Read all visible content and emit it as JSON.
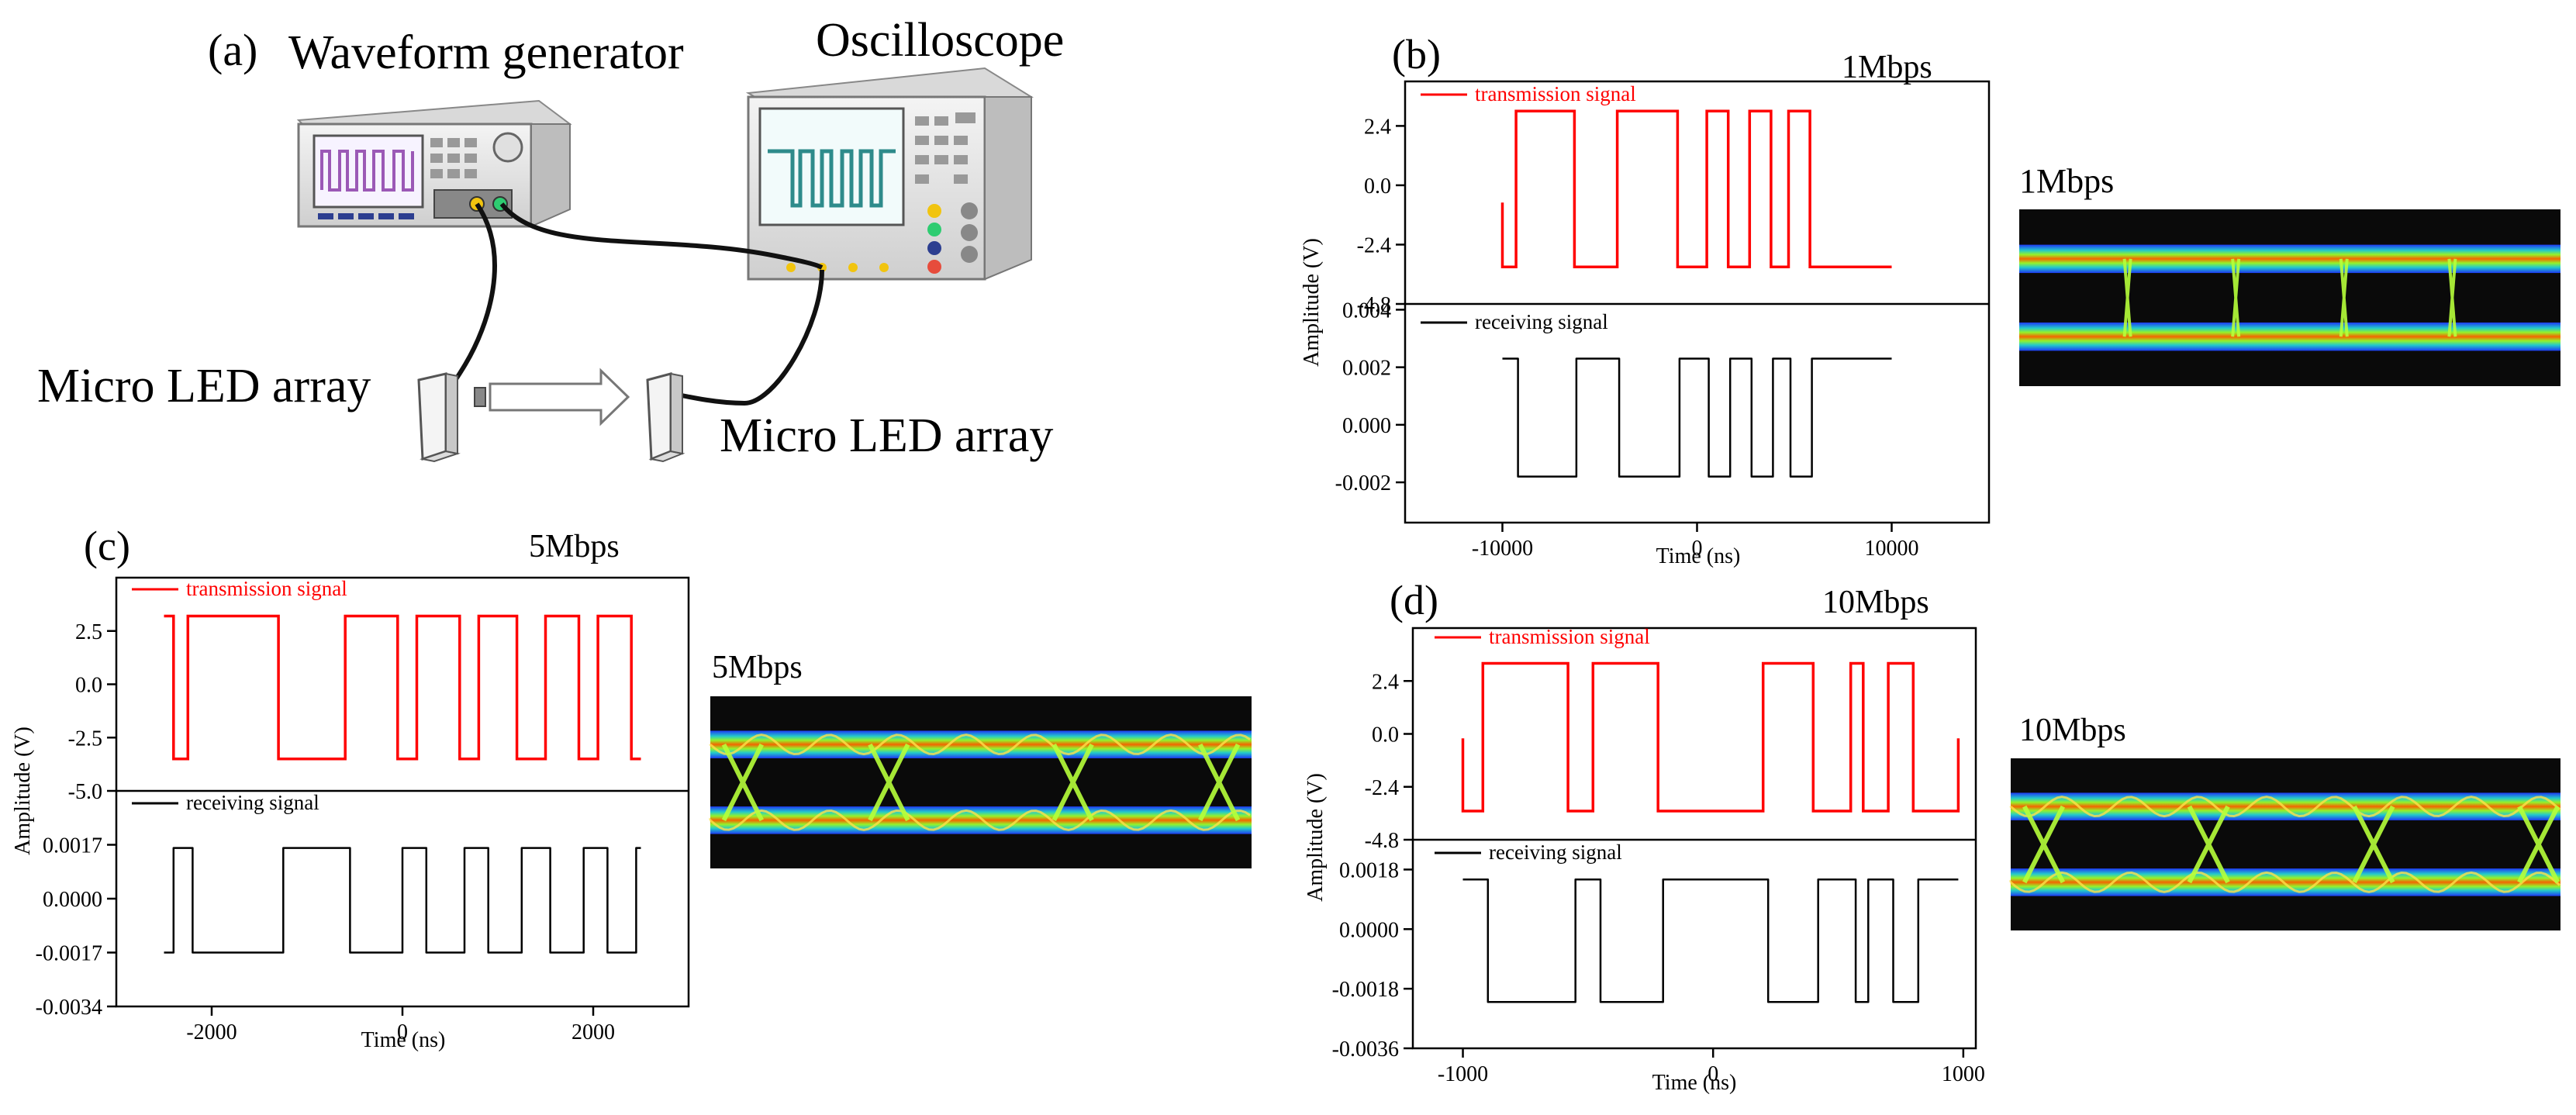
{
  "figure": {
    "panel_a": {
      "label": "(a)",
      "waveform_generator": "Waveform generator",
      "oscilloscope": "Oscilloscope",
      "led_left": "Micro LED array",
      "led_right": "Micro LED array"
    },
    "eye_1m_label": "1Mbps",
    "eye_5m_label": "5Mbps",
    "eye_10m_label": "10Mbps"
  },
  "colors": {
    "transmission": "#ff0000",
    "receiving": "#000000",
    "eye_bg": "#0a0a0a",
    "instrument_body": "#e6e6e6",
    "generator_trace": "#9b59b6",
    "scope_trace": "#2e8b8b"
  },
  "chart_data": [
    {
      "id": "b",
      "type": "line",
      "panel_label": "(b)",
      "title": "1Mbps",
      "xlabel": "Time (ns)",
      "ylabel": "Amplitude (V)",
      "xlim": [
        -15000,
        15000
      ],
      "xticks": [
        -10000,
        0,
        10000
      ],
      "xtick_labels": [
        "-10000",
        "0",
        "10000"
      ],
      "top": {
        "legend": "transmission signal",
        "ylim": [
          -4.8,
          4.2
        ],
        "yticks": [
          2.4,
          0.0,
          -2.4,
          -4.8
        ],
        "ytick_labels": [
          "2.4",
          "0.0",
          "-2.4",
          "-4.8"
        ],
        "high": 3.0,
        "low": -3.3,
        "start_level": "low",
        "start_pulse": -0.7,
        "x": [
          -10000,
          10000
        ],
        "transitions": [
          -9300,
          -6300,
          -4100,
          -1000,
          500,
          1600,
          2700,
          3800,
          4700,
          5800
        ]
      },
      "bottom": {
        "legend": "receiving signal",
        "ylim": [
          -0.0034,
          0.0042
        ],
        "yticks": [
          0.004,
          0.002,
          0.0,
          -0.002
        ],
        "ytick_labels": [
          "0.004",
          "0.002",
          "0.000",
          "-0.002"
        ],
        "high": 0.0023,
        "low": -0.0018,
        "start_level": "high",
        "x": [
          -10000,
          10000
        ],
        "transitions": [
          -9200,
          -6200,
          -4000,
          -900,
          600,
          1700,
          2800,
          3900,
          4800,
          5900
        ]
      }
    },
    {
      "id": "c",
      "type": "line",
      "panel_label": "(c)",
      "title": "5Mbps",
      "xlabel": "Time (ns)",
      "ylabel": "Amplitude (V)",
      "xlim": [
        -3000,
        3000
      ],
      "xticks": [
        -2000,
        0,
        2000
      ],
      "xtick_labels": [
        "-2000",
        "0",
        "2000"
      ],
      "top": {
        "legend": "transmission signal",
        "ylim": [
          -5.0,
          5.0
        ],
        "yticks": [
          2.5,
          0.0,
          -2.5,
          -5.0
        ],
        "ytick_labels": [
          "2.5",
          "0.0",
          "-2.5",
          "-5.0"
        ],
        "high": 3.2,
        "low": -3.5,
        "start_level": "high",
        "x": [
          -2500,
          2500
        ],
        "transitions": [
          -2400,
          -2250,
          -1300,
          -600,
          -50,
          150,
          600,
          800,
          1200,
          1500,
          1850,
          2050,
          2400
        ]
      },
      "bottom": {
        "legend": "receiving signal",
        "ylim": [
          -0.0034,
          0.0034
        ],
        "yticks": [
          0.0017,
          0.0,
          -0.0017,
          -0.0034
        ],
        "ytick_labels": [
          "0.0017",
          "0.0000",
          "-0.0017",
          "-0.0034"
        ],
        "high": 0.0016,
        "low": -0.0017,
        "start_level": "low",
        "x": [
          -2500,
          2500
        ],
        "transitions": [
          -2400,
          -2200,
          -1250,
          -550,
          0,
          250,
          650,
          900,
          1250,
          1550,
          1900,
          2150,
          2450
        ]
      }
    },
    {
      "id": "d",
      "type": "line",
      "panel_label": "(d)",
      "title": "10Mbps",
      "xlabel": "Time (ns)",
      "ylabel": "Amplitude (V)",
      "xlim": [
        -1200,
        1050
      ],
      "xticks": [
        -1000,
        0,
        1000
      ],
      "xtick_labels": [
        "-1000",
        "0",
        "1000"
      ],
      "top": {
        "legend": "transmission signal",
        "ylim": [
          -4.8,
          4.8
        ],
        "yticks": [
          2.4,
          0.0,
          -2.4,
          -4.8
        ],
        "ytick_labels": [
          "2.4",
          "0.0",
          "-2.4",
          "-4.8"
        ],
        "high": 3.2,
        "low": -3.5,
        "start_level": "low",
        "start_pulse": -0.2,
        "end_pulse": -0.2,
        "x": [
          -1000,
          1000
        ],
        "transitions": [
          -920,
          -580,
          -480,
          -220,
          200,
          400,
          550,
          600,
          700,
          800
        ],
        "end": 980
      },
      "bottom": {
        "legend": "receiving signal",
        "ylim": [
          -0.0036,
          0.0027
        ],
        "yticks": [
          0.0018,
          0.0,
          -0.0018,
          -0.0036
        ],
        "ytick_labels": [
          "0.0018",
          "0.0000",
          "-0.0018",
          "-0.0036"
        ],
        "high": 0.0015,
        "low": -0.0022,
        "start_level": "high",
        "x": [
          -1000,
          1000
        ],
        "transitions": [
          -900,
          -550,
          -450,
          -200,
          220,
          420,
          570,
          620,
          720,
          820
        ],
        "end": 980
      }
    }
  ]
}
